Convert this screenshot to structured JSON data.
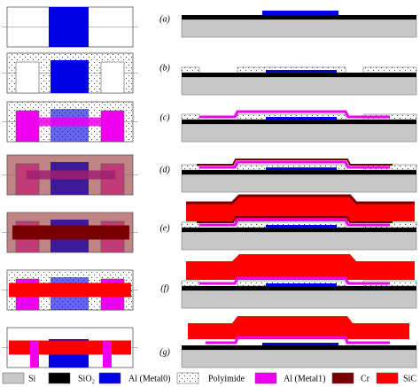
{
  "steps": [
    {
      "label": "(a)"
    },
    {
      "label": "(b)"
    },
    {
      "label": "(c)"
    },
    {
      "label": "(d)"
    },
    {
      "label": "(e)"
    },
    {
      "label": "(f)"
    },
    {
      "label": "(g)"
    }
  ],
  "legend": [
    {
      "label": "Si"
    },
    {
      "label": "SiO₂"
    },
    {
      "label": "Al (Metal0)"
    },
    {
      "label": "Polyimide"
    },
    {
      "label": "Al (Metal1)"
    },
    {
      "label": "Cr"
    },
    {
      "label": "SiC"
    }
  ]
}
